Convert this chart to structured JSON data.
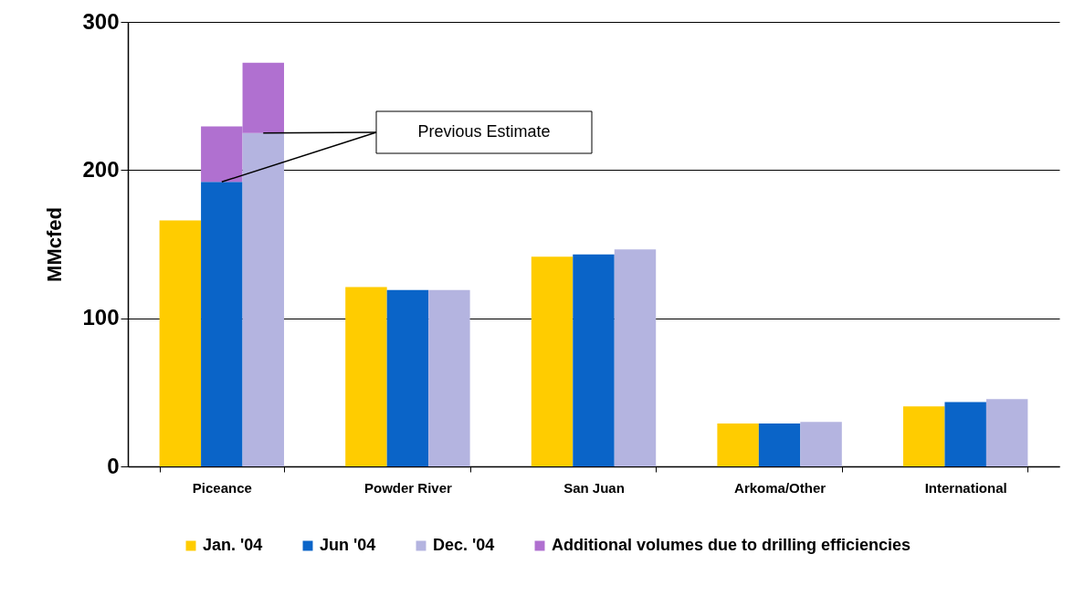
{
  "chart_data": {
    "type": "bar",
    "ylabel": "MMcfed",
    "categories": [
      "Piceance",
      "Powder River",
      "San Juan",
      "Arkoma/Other",
      "International"
    ],
    "series": [
      {
        "name": "Jan. '04",
        "color": "#ffcc00",
        "values": [
          166,
          121,
          141.5,
          29,
          40.5
        ]
      },
      {
        "name": "Jun '04",
        "color": "#0a64c8",
        "values": [
          192,
          119,
          143,
          29,
          43.5
        ]
      },
      {
        "name": "Additional volumes due to drilling efficiencies",
        "color": "#b070d0",
        "values": [
          37.5,
          null,
          null,
          null,
          null
        ],
        "base": [
          192,
          null,
          null,
          null,
          null
        ]
      },
      {
        "name": "Dec. '04",
        "color": "#b4b4e0",
        "values": [
          225,
          119,
          146.5,
          30,
          45.5
        ]
      },
      {
        "color": "#b070d0",
        "values": [
          47.5,
          null,
          null,
          null,
          null
        ],
        "base": [
          225,
          null,
          null,
          null,
          null
        ]
      }
    ],
    "ylim": [
      0,
      300
    ],
    "yticks": [
      0,
      100,
      200,
      300
    ],
    "grid": "y",
    "legend": "bottom",
    "annotations": [
      "Previous Estimate"
    ]
  }
}
